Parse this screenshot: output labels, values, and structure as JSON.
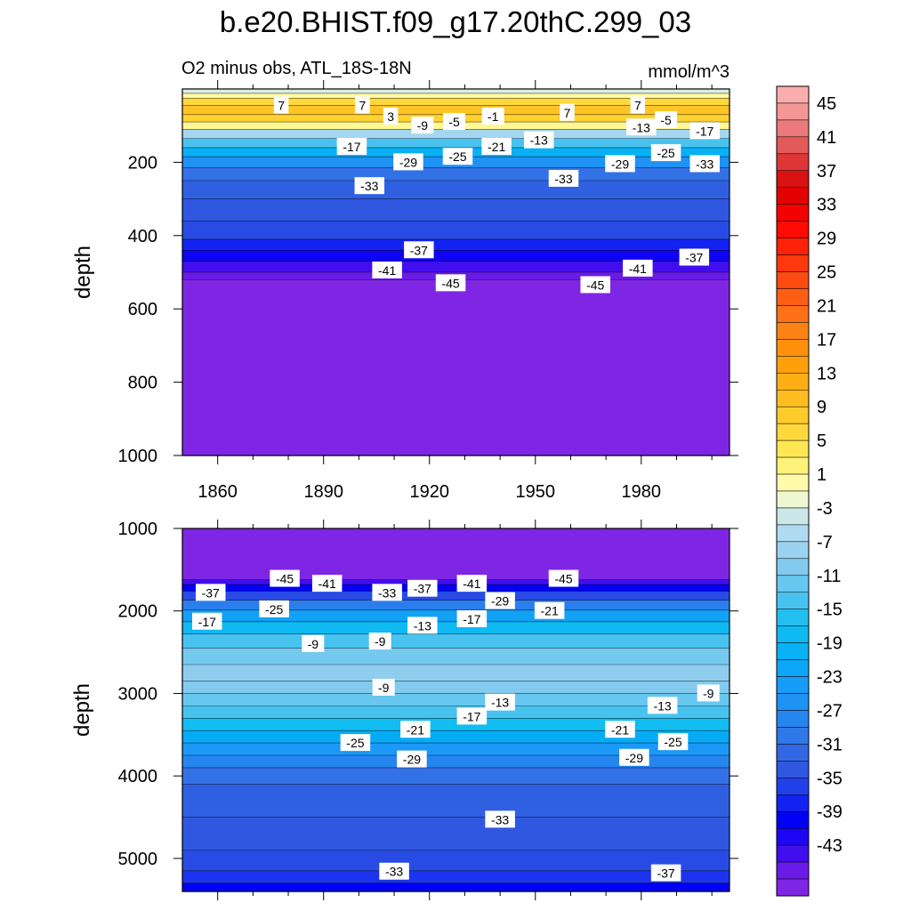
{
  "chart_data": {
    "type": "contour",
    "title": "b.e20.BHIST.f09_g17.20thC.299_03",
    "subtitle_left": "O2 minus obs, ATL_18S-18N",
    "subtitle_right": "mmol/m^3",
    "xlim": [
      1850,
      2005
    ],
    "x_ticks": [
      1860,
      1890,
      1920,
      1950,
      1980
    ],
    "colorbar_labels": [
      "45",
      "41",
      "37",
      "33",
      "29",
      "25",
      "21",
      "17",
      "13",
      "9",
      "5",
      "1",
      "-3",
      "-7",
      "-11",
      "-15",
      "-19",
      "-23",
      "-27",
      "-31",
      "-35",
      "-39",
      "-43"
    ],
    "panels": [
      {
        "name": "upper",
        "ylabel": "depth",
        "ylim": [
          0,
          1000
        ],
        "y_ticks": [
          200,
          400,
          600,
          800,
          1000
        ],
        "bands": [
          {
            "depth": 0,
            "value": -1
          },
          {
            "depth": 12,
            "value": 2
          },
          {
            "depth": 25,
            "value": 8
          },
          {
            "depth": 45,
            "value": 11
          },
          {
            "depth": 70,
            "value": 9
          },
          {
            "depth": 90,
            "value": 3
          },
          {
            "depth": 110,
            "value": -5
          },
          {
            "depth": 135,
            "value": -12
          },
          {
            "depth": 160,
            "value": -18
          },
          {
            "depth": 185,
            "value": -24
          },
          {
            "depth": 215,
            "value": -29
          },
          {
            "depth": 250,
            "value": -31
          },
          {
            "depth": 300,
            "value": -32
          },
          {
            "depth": 360,
            "value": -33
          },
          {
            "depth": 410,
            "value": -36
          },
          {
            "depth": 440,
            "value": -39
          },
          {
            "depth": 470,
            "value": -42
          },
          {
            "depth": 500,
            "value": -44
          },
          {
            "depth": 520,
            "value": -46
          },
          {
            "depth": 1000,
            "value": -46
          }
        ],
        "contour_labels": [
          {
            "text": "7",
            "year": 1878,
            "depth": 45
          },
          {
            "text": "7",
            "year": 1901,
            "depth": 45
          },
          {
            "text": "3",
            "year": 1909,
            "depth": 75
          },
          {
            "text": "-9",
            "year": 1918,
            "depth": 100
          },
          {
            "text": "-5",
            "year": 1927,
            "depth": 90
          },
          {
            "text": "-1",
            "year": 1938,
            "depth": 75
          },
          {
            "text": "7",
            "year": 1959,
            "depth": 65
          },
          {
            "text": "7",
            "year": 1979,
            "depth": 45
          },
          {
            "text": "-13",
            "year": 1980,
            "depth": 105
          },
          {
            "text": "-5",
            "year": 1987,
            "depth": 85
          },
          {
            "text": "-17",
            "year": 1898,
            "depth": 158
          },
          {
            "text": "-21",
            "year": 1939,
            "depth": 158
          },
          {
            "text": "-13",
            "year": 1951,
            "depth": 140
          },
          {
            "text": "-17",
            "year": 1998,
            "depth": 115
          },
          {
            "text": "-29",
            "year": 1914,
            "depth": 200
          },
          {
            "text": "-25",
            "year": 1928,
            "depth": 185
          },
          {
            "text": "-25",
            "year": 1987,
            "depth": 175
          },
          {
            "text": "-29",
            "year": 1974,
            "depth": 205
          },
          {
            "text": "-33",
            "year": 1958,
            "depth": 245
          },
          {
            "text": "-33",
            "year": 1998,
            "depth": 205
          },
          {
            "text": "-33",
            "year": 1903,
            "depth": 265
          },
          {
            "text": "-37",
            "year": 1917,
            "depth": 440
          },
          {
            "text": "-37",
            "year": 1995,
            "depth": 460
          },
          {
            "text": "-41",
            "year": 1908,
            "depth": 495
          },
          {
            "text": "-41",
            "year": 1979,
            "depth": 490
          },
          {
            "text": "-45",
            "year": 1926,
            "depth": 530
          },
          {
            "text": "-45",
            "year": 1967,
            "depth": 535
          }
        ]
      },
      {
        "name": "lower",
        "ylabel": "depth",
        "ylim": [
          1000,
          5400
        ],
        "y_ticks": [
          1000,
          2000,
          3000,
          4000,
          5000
        ],
        "bands": [
          {
            "depth": 1000,
            "value": -46
          },
          {
            "depth": 1540,
            "value": -46
          },
          {
            "depth": 1620,
            "value": -42
          },
          {
            "depth": 1680,
            "value": -38
          },
          {
            "depth": 1760,
            "value": -33
          },
          {
            "depth": 1870,
            "value": -27
          },
          {
            "depth": 1990,
            "value": -21
          },
          {
            "depth": 2130,
            "value": -16
          },
          {
            "depth": 2280,
            "value": -12
          },
          {
            "depth": 2450,
            "value": -9
          },
          {
            "depth": 2650,
            "value": -7
          },
          {
            "depth": 2850,
            "value": -8
          },
          {
            "depth": 3000,
            "value": -10
          },
          {
            "depth": 3150,
            "value": -12
          },
          {
            "depth": 3300,
            "value": -15
          },
          {
            "depth": 3450,
            "value": -19
          },
          {
            "depth": 3600,
            "value": -23
          },
          {
            "depth": 3750,
            "value": -26
          },
          {
            "depth": 3900,
            "value": -29
          },
          {
            "depth": 4100,
            "value": -31
          },
          {
            "depth": 4500,
            "value": -32
          },
          {
            "depth": 4900,
            "value": -33
          },
          {
            "depth": 5150,
            "value": -35
          },
          {
            "depth": 5300,
            "value": -38
          },
          {
            "depth": 5400,
            "value": -40
          }
        ],
        "contour_labels": [
          {
            "text": "-45",
            "year": 1879,
            "depth": 1610
          },
          {
            "text": "-41",
            "year": 1891,
            "depth": 1670
          },
          {
            "text": "-37",
            "year": 1858,
            "depth": 1780
          },
          {
            "text": "-33",
            "year": 1908,
            "depth": 1780
          },
          {
            "text": "-37",
            "year": 1918,
            "depth": 1730
          },
          {
            "text": "-41",
            "year": 1932,
            "depth": 1670
          },
          {
            "text": "-45",
            "year": 1958,
            "depth": 1610
          },
          {
            "text": "-25",
            "year": 1876,
            "depth": 1980
          },
          {
            "text": "-29",
            "year": 1940,
            "depth": 1880
          },
          {
            "text": "-21",
            "year": 1954,
            "depth": 2000
          },
          {
            "text": "-17",
            "year": 1857,
            "depth": 2130
          },
          {
            "text": "-17",
            "year": 1932,
            "depth": 2100
          },
          {
            "text": "-13",
            "year": 1918,
            "depth": 2180
          },
          {
            "text": "-9",
            "year": 1887,
            "depth": 2400
          },
          {
            "text": "-9",
            "year": 1906,
            "depth": 2370
          },
          {
            "text": "-9",
            "year": 1907,
            "depth": 2930
          },
          {
            "text": "-9",
            "year": 1999,
            "depth": 3000
          },
          {
            "text": "-13",
            "year": 1940,
            "depth": 3110
          },
          {
            "text": "-13",
            "year": 1986,
            "depth": 3150
          },
          {
            "text": "-17",
            "year": 1932,
            "depth": 3280
          },
          {
            "text": "-21",
            "year": 1916,
            "depth": 3440
          },
          {
            "text": "-21",
            "year": 1974,
            "depth": 3440
          },
          {
            "text": "-25",
            "year": 1899,
            "depth": 3600
          },
          {
            "text": "-25",
            "year": 1989,
            "depth": 3590
          },
          {
            "text": "-29",
            "year": 1915,
            "depth": 3800
          },
          {
            "text": "-29",
            "year": 1978,
            "depth": 3780
          },
          {
            "text": "-33",
            "year": 1940,
            "depth": 4530
          },
          {
            "text": "-33",
            "year": 1910,
            "depth": 5160
          },
          {
            "text": "-37",
            "year": 1987,
            "depth": 5180
          }
        ]
      }
    ]
  }
}
